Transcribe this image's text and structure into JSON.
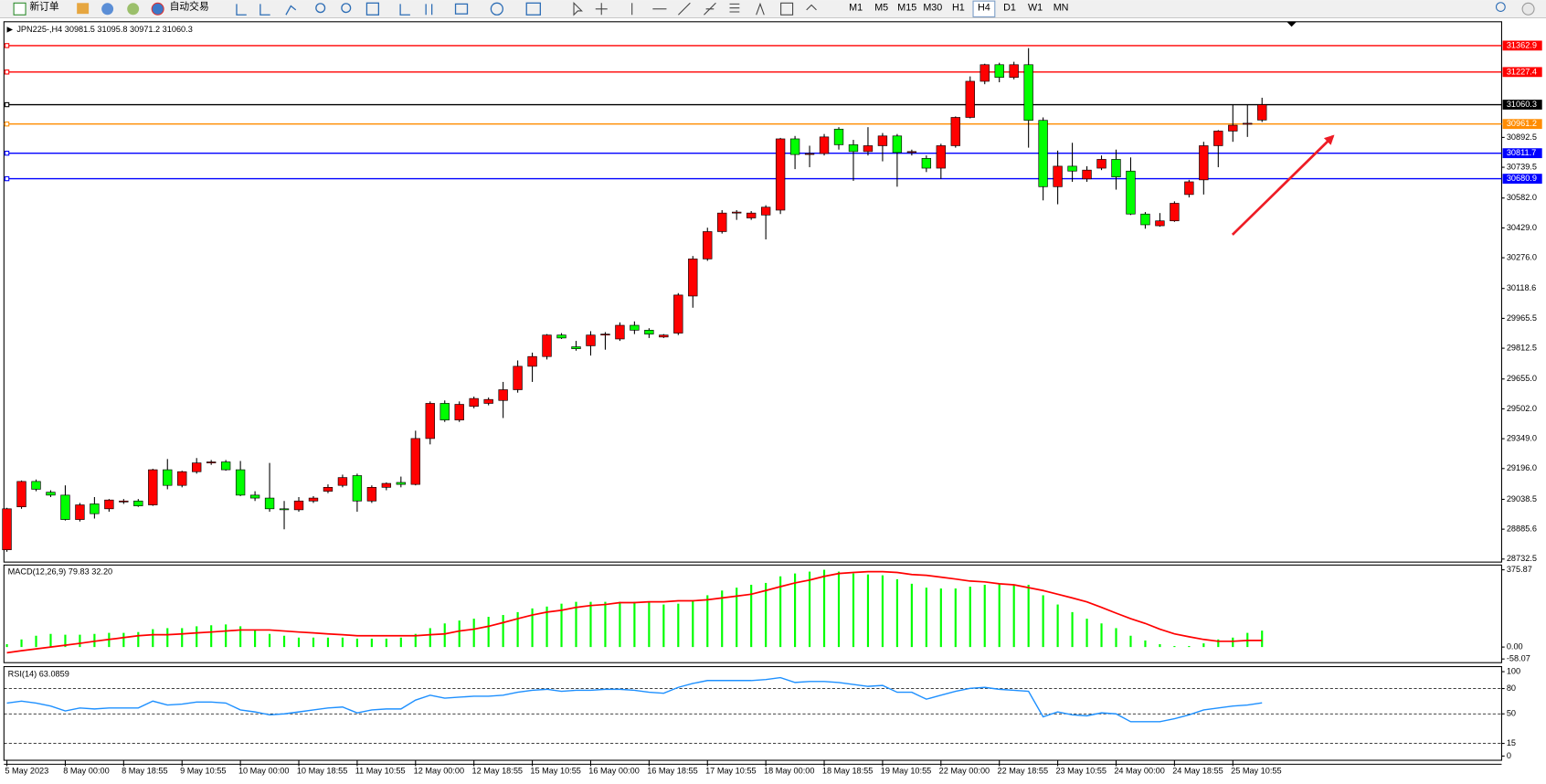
{
  "toolbar": {
    "new_order": "新订单",
    "auto_trade": "自动交易",
    "timeframes": [
      "M1",
      "M5",
      "M15",
      "M30",
      "H1",
      "H4",
      "D1",
      "W1",
      "MN"
    ]
  },
  "chart_data": [
    {
      "type": "candlestick",
      "title": "JPN225-,H4  30981.5 31095.8 30971.2 31060.3",
      "categories": [
        "5 May 2023",
        null,
        null,
        null,
        "8 May 00:00",
        null,
        null,
        null,
        "8 May 18:55",
        null,
        null,
        null,
        "9 May 10:55",
        null,
        null,
        null,
        "10 May 00:00",
        null,
        null,
        null,
        "10 May 18:55",
        null,
        null,
        null,
        "11 May 10:55",
        null,
        null,
        null,
        "12 May 00:00",
        null,
        null,
        null,
        "12 May 18:55",
        null,
        null,
        null,
        "15 May 10:55",
        null,
        null,
        null,
        "16 May 00:00",
        null,
        null,
        null,
        "16 May 18:55",
        null,
        null,
        null,
        "17 May 10:55",
        null,
        null,
        null,
        "18 May 00:00",
        null,
        null,
        null,
        "18 May 18:55",
        null,
        null,
        null,
        "19 May 10:55",
        null,
        null,
        null,
        "22 May 00:00",
        null,
        null,
        null,
        "22 May 18:55",
        null,
        null,
        null,
        "23 May 10:55",
        null,
        null,
        null,
        "24 May 00:00",
        null,
        null,
        null,
        "24 May 18:55",
        null,
        null,
        null,
        "25 May 10:55",
        null,
        null
      ],
      "open": [
        28780,
        29000,
        29130,
        29075,
        29060,
        28935,
        29015,
        28990,
        29025,
        29030,
        29010,
        29190,
        29110,
        29180,
        29225,
        29230,
        29190,
        29060,
        29045,
        28990,
        28985,
        29030,
        29080,
        29110,
        29160,
        29030,
        29100,
        29125,
        29115,
        29350,
        29530,
        29445,
        29515,
        29530,
        29545,
        29600,
        29720,
        29770,
        29880,
        29820,
        29825,
        29880,
        29860,
        29930,
        29905,
        29870,
        29890,
        30080,
        30270,
        30410,
        30505,
        30480,
        30495,
        30520,
        30885,
        30805,
        30810,
        30935,
        30855,
        30820,
        30850,
        30900,
        30815,
        30785,
        30735,
        30850,
        30995,
        31180,
        31265,
        31200,
        31265,
        30980,
        30640,
        30745,
        30680,
        30735,
        30780,
        30720,
        30500,
        30440,
        30465,
        30600,
        30675,
        30850,
        30925,
        30960,
        30981.5
      ],
      "high": [
        28995,
        29135,
        29140,
        29085,
        29110,
        29020,
        29050,
        29040,
        29040,
        29040,
        29195,
        29245,
        29185,
        29250,
        29240,
        29240,
        29235,
        29080,
        29225,
        29030,
        29050,
        29055,
        29115,
        29165,
        29170,
        29110,
        29125,
        29155,
        29390,
        29540,
        29545,
        29540,
        29565,
        29560,
        29640,
        29750,
        29790,
        29885,
        29890,
        29850,
        29900,
        29895,
        29945,
        29950,
        29915,
        29885,
        30095,
        30285,
        30430,
        30520,
        30520,
        30515,
        30545,
        30890,
        30900,
        30850,
        30910,
        30945,
        30880,
        30945,
        30915,
        30910,
        30830,
        30800,
        30860,
        31000,
        31205,
        31270,
        31275,
        31280,
        31350,
        30995,
        30825,
        30865,
        30745,
        30800,
        30830,
        30790,
        30510,
        30505,
        30565,
        30675,
        30870,
        30930,
        31060,
        31060,
        31095.8
      ],
      "low": [
        28770,
        28990,
        29080,
        29050,
        28930,
        28925,
        28940,
        28975,
        29015,
        29000,
        29005,
        29090,
        29100,
        29170,
        29215,
        29185,
        29055,
        29030,
        28975,
        28885,
        28975,
        29020,
        29070,
        29100,
        28975,
        29020,
        29085,
        29100,
        29110,
        29320,
        29435,
        29435,
        29505,
        29520,
        29455,
        29585,
        29640,
        29755,
        29860,
        29800,
        29775,
        29805,
        29850,
        29885,
        29865,
        29865,
        29880,
        30020,
        30260,
        30400,
        30470,
        30470,
        30370,
        30500,
        30730,
        30740,
        30800,
        30830,
        30670,
        30800,
        30770,
        30640,
        30800,
        30715,
        30680,
        30840,
        30990,
        31165,
        31175,
        31190,
        30840,
        30570,
        30550,
        30665,
        30665,
        30725,
        30625,
        30495,
        30425,
        30435,
        30460,
        30585,
        30600,
        30740,
        30870,
        30895,
        30971.2
      ],
      "close": [
        28990,
        29130,
        29090,
        29060,
        28935,
        29010,
        28965,
        29035,
        29030,
        29005,
        29190,
        29110,
        29180,
        29225,
        29230,
        29190,
        29060,
        29045,
        28990,
        28985,
        29030,
        29045,
        29100,
        29150,
        29030,
        29100,
        29120,
        29115,
        29350,
        29530,
        29445,
        29525,
        29555,
        29550,
        29600,
        29720,
        29770,
        29880,
        29865,
        29810,
        29880,
        29885,
        29930,
        29905,
        29885,
        29880,
        30085,
        30270,
        30410,
        30505,
        30510,
        30505,
        30535,
        30885,
        30805,
        30810,
        30895,
        30855,
        30820,
        30850,
        30900,
        30815,
        30820,
        30735,
        30850,
        30995,
        31180,
        31265,
        31200,
        31265,
        30980,
        30640,
        30745,
        30720,
        30725,
        30780,
        30690,
        30500,
        30445,
        30465,
        30555,
        30665,
        30850,
        30925,
        30955,
        30965,
        31060.3
      ],
      "up_color": "#ff0000",
      "down_color": "#00ff00",
      "ylim": [
        28717,
        31485
      ],
      "yticks": [
        28732.5,
        28885.6,
        29038.5,
        {
          "value": 29196,
          "label": "29196.0"
        },
        {
          "value": 29349,
          "label": "29349.0"
        },
        {
          "value": 29502,
          "label": "29502.0"
        },
        {
          "value": 29655,
          "label": "29655.0"
        },
        29812.5,
        29965.5,
        30118.6,
        {
          "value": 30276,
          "label": "30276.0"
        },
        {
          "value": 30429,
          "label": "30429.0"
        },
        {
          "value": 30582,
          "label": "30582.0"
        },
        30739.5,
        30892.5
      ],
      "hlines": [
        {
          "value": 31362.9,
          "color": "#ff0000"
        },
        {
          "value": 31227.4,
          "color": "#ff0000"
        },
        {
          "value": 31060.3,
          "color": "#000000"
        },
        {
          "value": 30961.2,
          "color": "#ff8c00"
        },
        {
          "value": 30811.7,
          "color": "#0000ff"
        },
        {
          "value": 30680.9,
          "color": "#0000ff"
        }
      ]
    },
    {
      "type": "macd",
      "title": "MACD(12,26,9) 79.83 32.20",
      "histogram": {
        "color": "#00ff00",
        "values": [
          14,
          37,
          55,
          64,
          60,
          60,
          64,
          69,
          69,
          73,
          87,
          92,
          92,
          101,
          106,
          110,
          101,
          83,
          64,
          55,
          46,
          46,
          46,
          46,
          41,
          41,
          41,
          46,
          64,
          92,
          115,
          129,
          138,
          147,
          156,
          170,
          188,
          197,
          211,
          220,
          220,
          220,
          220,
          220,
          216,
          207,
          211,
          225,
          252,
          275,
          289,
          303,
          312,
          344,
          358,
          367,
          376,
          367,
          358,
          353,
          349,
          330,
          308,
          289,
          285,
          285,
          294,
          303,
          308,
          303,
          303,
          252,
          207,
          170,
          138,
          115,
          92,
          55,
          32,
          14,
          5,
          5,
          18,
          37,
          46,
          69,
          79.83
        ]
      },
      "signal": {
        "color": "#ff0000",
        "values": [
          -28,
          -18,
          -9,
          0,
          9,
          18,
          28,
          37,
          46,
          55,
          60,
          60,
          64,
          69,
          73,
          78,
          83,
          83,
          83,
          78,
          73,
          69,
          64,
          60,
          55,
          55,
          55,
          55,
          55,
          60,
          64,
          78,
          87,
          101,
          119,
          138,
          156,
          170,
          179,
          193,
          202,
          207,
          216,
          216,
          220,
          220,
          225,
          225,
          230,
          239,
          248,
          257,
          275,
          294,
          312,
          326,
          344,
          358,
          363,
          367,
          367,
          363,
          353,
          349,
          340,
          331,
          321,
          317,
          308,
          303,
          289,
          275,
          257,
          239,
          220,
          193,
          165,
          138,
          115,
          87,
          64,
          50,
          37,
          28,
          28,
          32,
          32.2
        ]
      },
      "ylim": [
        -76,
        399
      ],
      "yticks": [
        375.87,
        {
          "value": 0,
          "label": "0.00"
        },
        -58.07
      ]
    },
    {
      "type": "line",
      "title": "RSI(14) 63.0859",
      "color": "#1e90ff",
      "values": [
        62.8,
        65.1,
        62.8,
        59.3,
        53.5,
        57,
        55.8,
        57,
        57,
        57,
        65.1,
        60.5,
        61.6,
        64,
        64,
        62.8,
        54.7,
        52.3,
        48.8,
        50,
        52.3,
        54.7,
        57,
        58.1,
        51.2,
        54.7,
        55.8,
        55.8,
        66.3,
        72.1,
        68.6,
        69.8,
        70.9,
        70.9,
        72.1,
        75.6,
        77.9,
        79.1,
        76.7,
        77.9,
        77.9,
        79.1,
        79.1,
        77.9,
        75.6,
        74.4,
        81.4,
        86,
        89.5,
        89.5,
        89.5,
        89.5,
        90.7,
        93,
        87.2,
        88.4,
        88.4,
        87.2,
        84.9,
        82.6,
        83.7,
        75.6,
        75.6,
        67.4,
        72.1,
        76.7,
        80.2,
        81.4,
        79.1,
        77.9,
        76.7,
        46.5,
        52.3,
        48.8,
        47.7,
        51.2,
        50,
        40.7,
        40.7,
        40.7,
        44.2,
        48.8,
        54.7,
        57,
        59.3,
        60.5,
        63.0859
      ],
      "ylim": [
        -5,
        106
      ],
      "yticks": [
        100,
        80,
        50,
        15,
        0
      ],
      "levels": [
        80,
        50,
        15
      ]
    }
  ]
}
